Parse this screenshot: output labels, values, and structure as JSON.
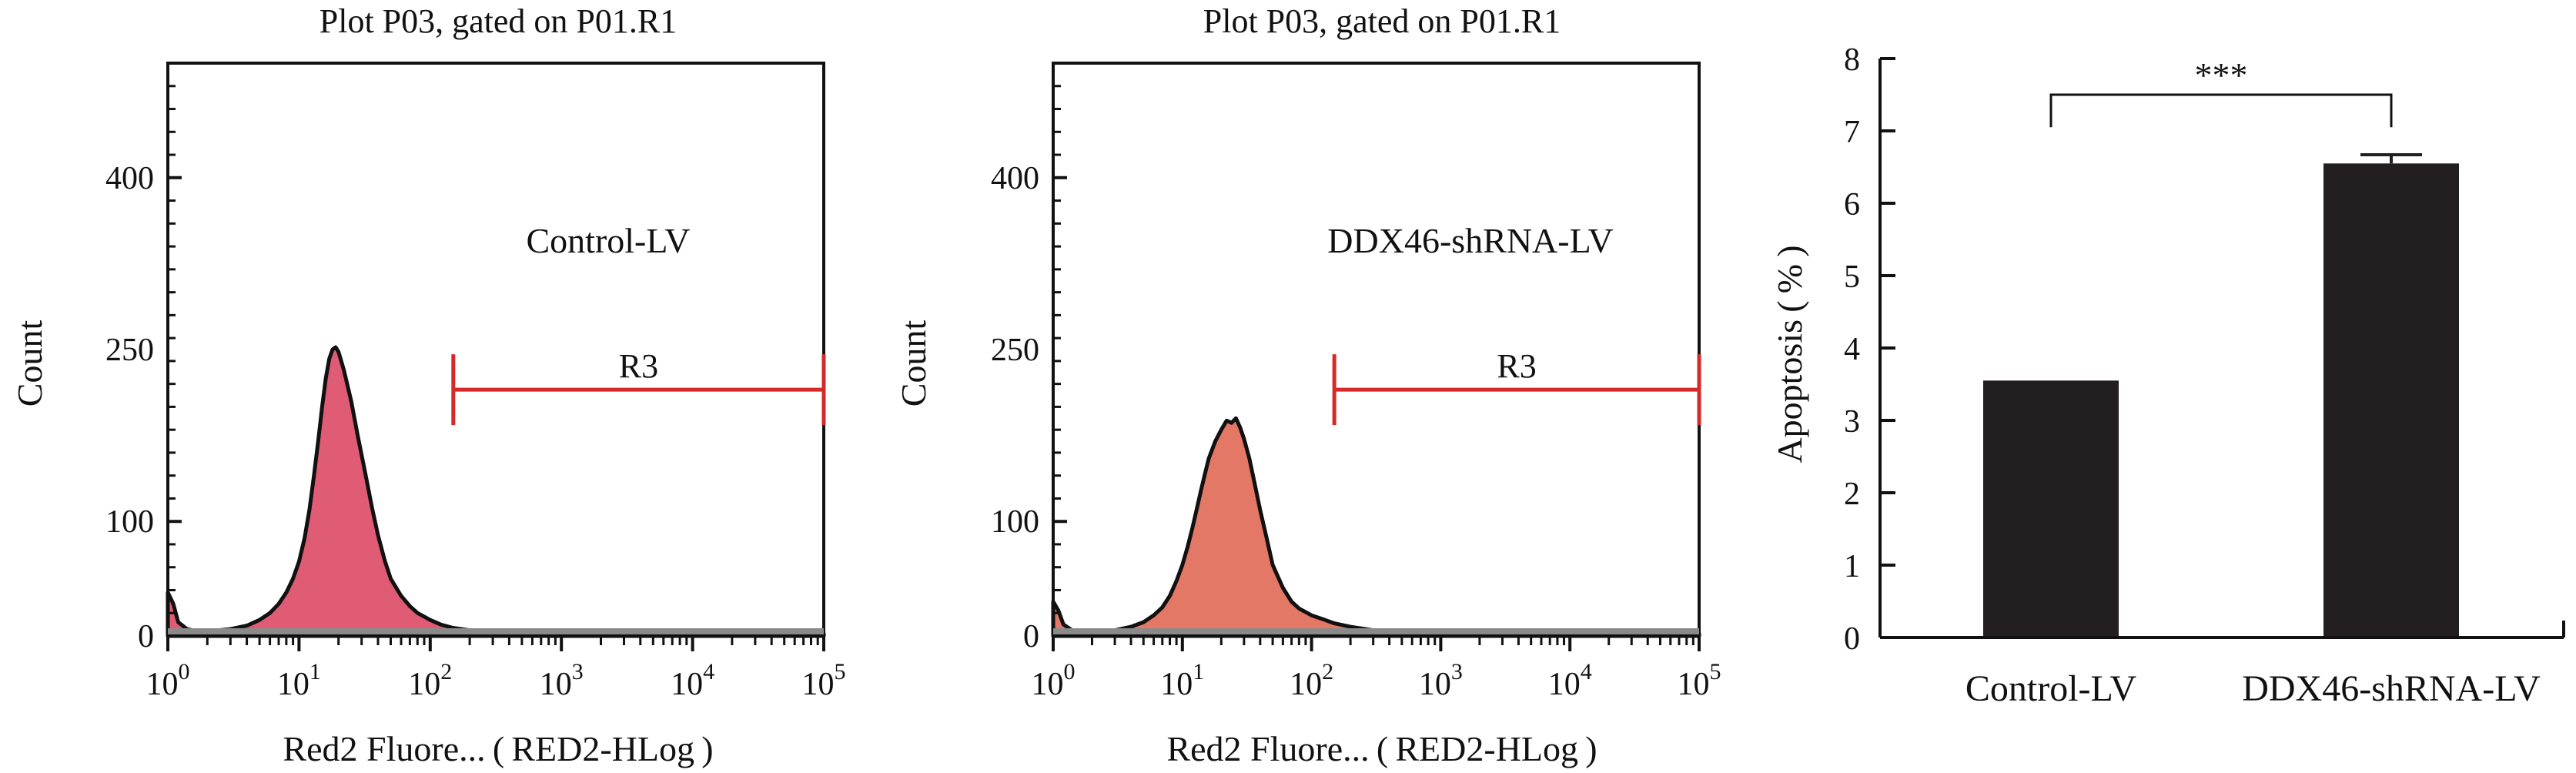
{
  "colors": {
    "hist_fill_1": "#e05c74",
    "hist_fill_2": "#e37866",
    "gate": "#d42a2a",
    "bar": "#231f20",
    "axis": "#111111"
  },
  "chart_data": [
    {
      "type": "area",
      "title": "Plot P03, gated on P01.R1",
      "xlabel": "Red2 Fluore... ( RED2-HLog )",
      "ylabel": "Count",
      "x_scale": "log10",
      "xlim": [
        1,
        100000
      ],
      "ylim": [
        0,
        500
      ],
      "x_ticks": [
        {
          "base": "10",
          "exp": "0"
        },
        {
          "base": "10",
          "exp": "1"
        },
        {
          "base": "10",
          "exp": "2"
        },
        {
          "base": "10",
          "exp": "3"
        },
        {
          "base": "10",
          "exp": "4"
        },
        {
          "base": "10",
          "exp": "5"
        }
      ],
      "y_ticks": [
        "0",
        "100",
        "250",
        "400"
      ],
      "y_tick_values": [
        0,
        100,
        250,
        400
      ],
      "annotation": "Control-LV",
      "gate": {
        "label": "R3",
        "x_start": 150,
        "x_end": 100000,
        "y": 215
      },
      "series": [
        {
          "x": [
            1,
            1.1,
            1.2,
            1.4,
            1.7,
            2,
            3,
            4,
            5,
            6,
            7,
            8,
            9,
            10,
            11,
            12,
            13,
            14,
            15,
            16,
            17,
            18,
            19,
            20,
            22,
            25,
            28,
            32,
            36,
            40,
            45,
            50,
            60,
            70,
            80,
            100,
            120,
            150,
            200,
            300,
            500,
            1000,
            5000,
            100000
          ],
          "y": [
            38,
            28,
            12,
            6,
            4,
            4,
            6,
            9,
            14,
            20,
            28,
            38,
            50,
            65,
            85,
            110,
            140,
            170,
            200,
            225,
            242,
            250,
            252,
            248,
            232,
            205,
            175,
            142,
            112,
            88,
            66,
            50,
            35,
            26,
            20,
            14,
            10,
            7,
            5,
            4,
            3,
            2,
            2,
            2
          ]
        }
      ]
    },
    {
      "type": "area",
      "title": "Plot P03, gated on P01.R1",
      "xlabel": "Red2 Fluore... ( RED2-HLog )",
      "ylabel": "Count",
      "x_scale": "log10",
      "xlim": [
        1,
        100000
      ],
      "ylim": [
        0,
        500
      ],
      "x_ticks": [
        {
          "base": "10",
          "exp": "0"
        },
        {
          "base": "10",
          "exp": "1"
        },
        {
          "base": "10",
          "exp": "2"
        },
        {
          "base": "10",
          "exp": "3"
        },
        {
          "base": "10",
          "exp": "4"
        },
        {
          "base": "10",
          "exp": "5"
        }
      ],
      "y_ticks": [
        "0",
        "100",
        "250",
        "400"
      ],
      "y_tick_values": [
        0,
        100,
        250,
        400
      ],
      "annotation": "DDX46-shRNA-LV",
      "gate": {
        "label": "R3",
        "x_start": 150,
        "x_end": 100000,
        "y": 215
      },
      "series": [
        {
          "x": [
            1,
            1.1,
            1.2,
            1.4,
            1.7,
            2,
            3,
            4,
            5,
            6,
            7,
            8,
            9,
            10,
            11,
            12,
            13,
            14,
            15,
            16,
            18,
            20,
            22,
            24,
            26,
            28,
            30,
            33,
            36,
            40,
            45,
            50,
            60,
            70,
            80,
            100,
            120,
            150,
            200,
            300,
            500,
            1000,
            5000,
            100000
          ],
          "y": [
            30,
            22,
            10,
            5,
            3,
            3,
            5,
            8,
            12,
            18,
            25,
            35,
            48,
            62,
            78,
            95,
            112,
            128,
            142,
            155,
            170,
            180,
            188,
            186,
            190,
            182,
            172,
            155,
            135,
            110,
            85,
            62,
            42,
            30,
            24,
            18,
            15,
            11,
            8,
            5,
            3,
            2,
            2,
            2
          ]
        }
      ]
    },
    {
      "type": "bar",
      "categories": [
        "Control-LV",
        "DDX46-shRNA-LV"
      ],
      "values": [
        3.55,
        6.55
      ],
      "errors": [
        0.02,
        0.12
      ],
      "ylabel": "Apoptosis ( % )",
      "ylim": [
        0,
        8
      ],
      "y_ticks": [
        "0",
        "1",
        "2",
        "3",
        "4",
        "5",
        "6",
        "7",
        "8"
      ],
      "significance": "***"
    }
  ]
}
